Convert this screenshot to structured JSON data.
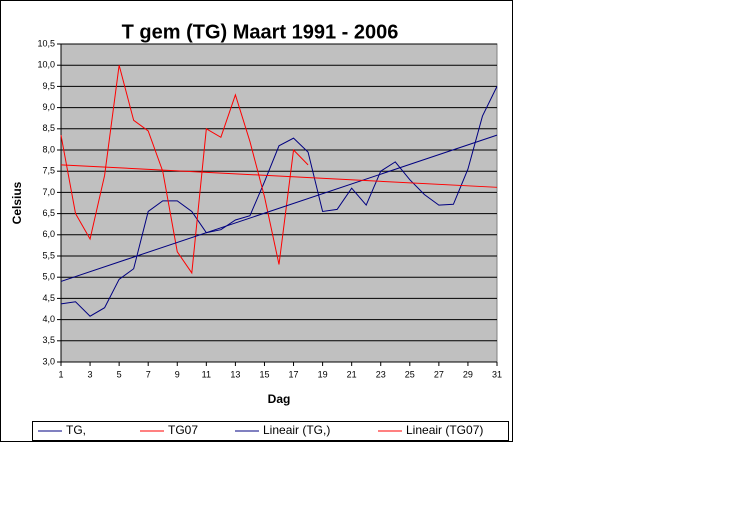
{
  "chart_data": {
    "type": "line",
    "title": "T gem (TG) Maart 1991 - 2006",
    "x_label": "Dag",
    "y_label": "Celsius",
    "x": [
      1,
      2,
      3,
      4,
      5,
      6,
      7,
      8,
      9,
      10,
      11,
      12,
      13,
      14,
      15,
      16,
      17,
      18,
      19,
      20,
      21,
      22,
      23,
      24,
      25,
      26,
      27,
      28,
      29,
      30,
      31
    ],
    "xlim": [
      1,
      31
    ],
    "xticks": [
      1,
      3,
      5,
      7,
      9,
      11,
      13,
      15,
      17,
      19,
      21,
      23,
      25,
      27,
      29,
      31
    ],
    "ylim": [
      3,
      10.5
    ],
    "yticks": [
      {
        "value": 3,
        "label": "3,0"
      },
      {
        "value": 3.5,
        "label": "3,5"
      },
      {
        "value": 4,
        "label": "4,0"
      },
      {
        "value": 4.5,
        "label": "4,5"
      },
      {
        "value": 5,
        "label": "5,0"
      },
      {
        "value": 5.5,
        "label": "5,5"
      },
      {
        "value": 6,
        "label": "6,0"
      },
      {
        "value": 6.5,
        "label": "6,5"
      },
      {
        "value": 7,
        "label": "7,0"
      },
      {
        "value": 7.5,
        "label": "7,5"
      },
      {
        "value": 8,
        "label": "8,0"
      },
      {
        "value": 8.5,
        "label": "8,5"
      },
      {
        "value": 9,
        "label": "9,0"
      },
      {
        "value": 9.5,
        "label": "9,5"
      },
      {
        "value": 10,
        "label": "10,0"
      },
      {
        "value": 10.5,
        "label": "10,5"
      }
    ],
    "grid": true,
    "series": [
      {
        "name": "TG,",
        "color": "#000080",
        "values": [
          4.37,
          4.42,
          4.08,
          4.28,
          4.95,
          5.2,
          6.55,
          6.8,
          6.8,
          6.55,
          6.05,
          6.12,
          6.35,
          6.45,
          7.25,
          8.1,
          8.28,
          7.95,
          6.55,
          6.6,
          7.1,
          6.7,
          7.5,
          7.72,
          7.3,
          6.95,
          6.7,
          6.72,
          7.55,
          8.8,
          9.5
        ]
      },
      {
        "name": "TG07",
        "color": "#ff0000",
        "values": [
          8.35,
          6.5,
          5.9,
          7.4,
          10.0,
          8.7,
          8.45,
          7.5,
          5.6,
          5.1,
          8.5,
          8.3,
          9.3,
          8.2,
          6.9,
          5.3,
          8.0,
          7.65,
          null,
          null,
          null,
          null,
          null,
          null,
          null,
          null,
          null,
          null,
          null,
          null,
          null
        ]
      },
      {
        "name": "Lineair (TG,)",
        "color": "#000080",
        "x": [
          1,
          31
        ],
        "values": [
          4.9,
          8.35
        ]
      },
      {
        "name": "Lineair (TG07)",
        "color": "#ff0000",
        "x": [
          1,
          31
        ],
        "values": [
          7.65,
          7.12
        ]
      }
    ]
  }
}
